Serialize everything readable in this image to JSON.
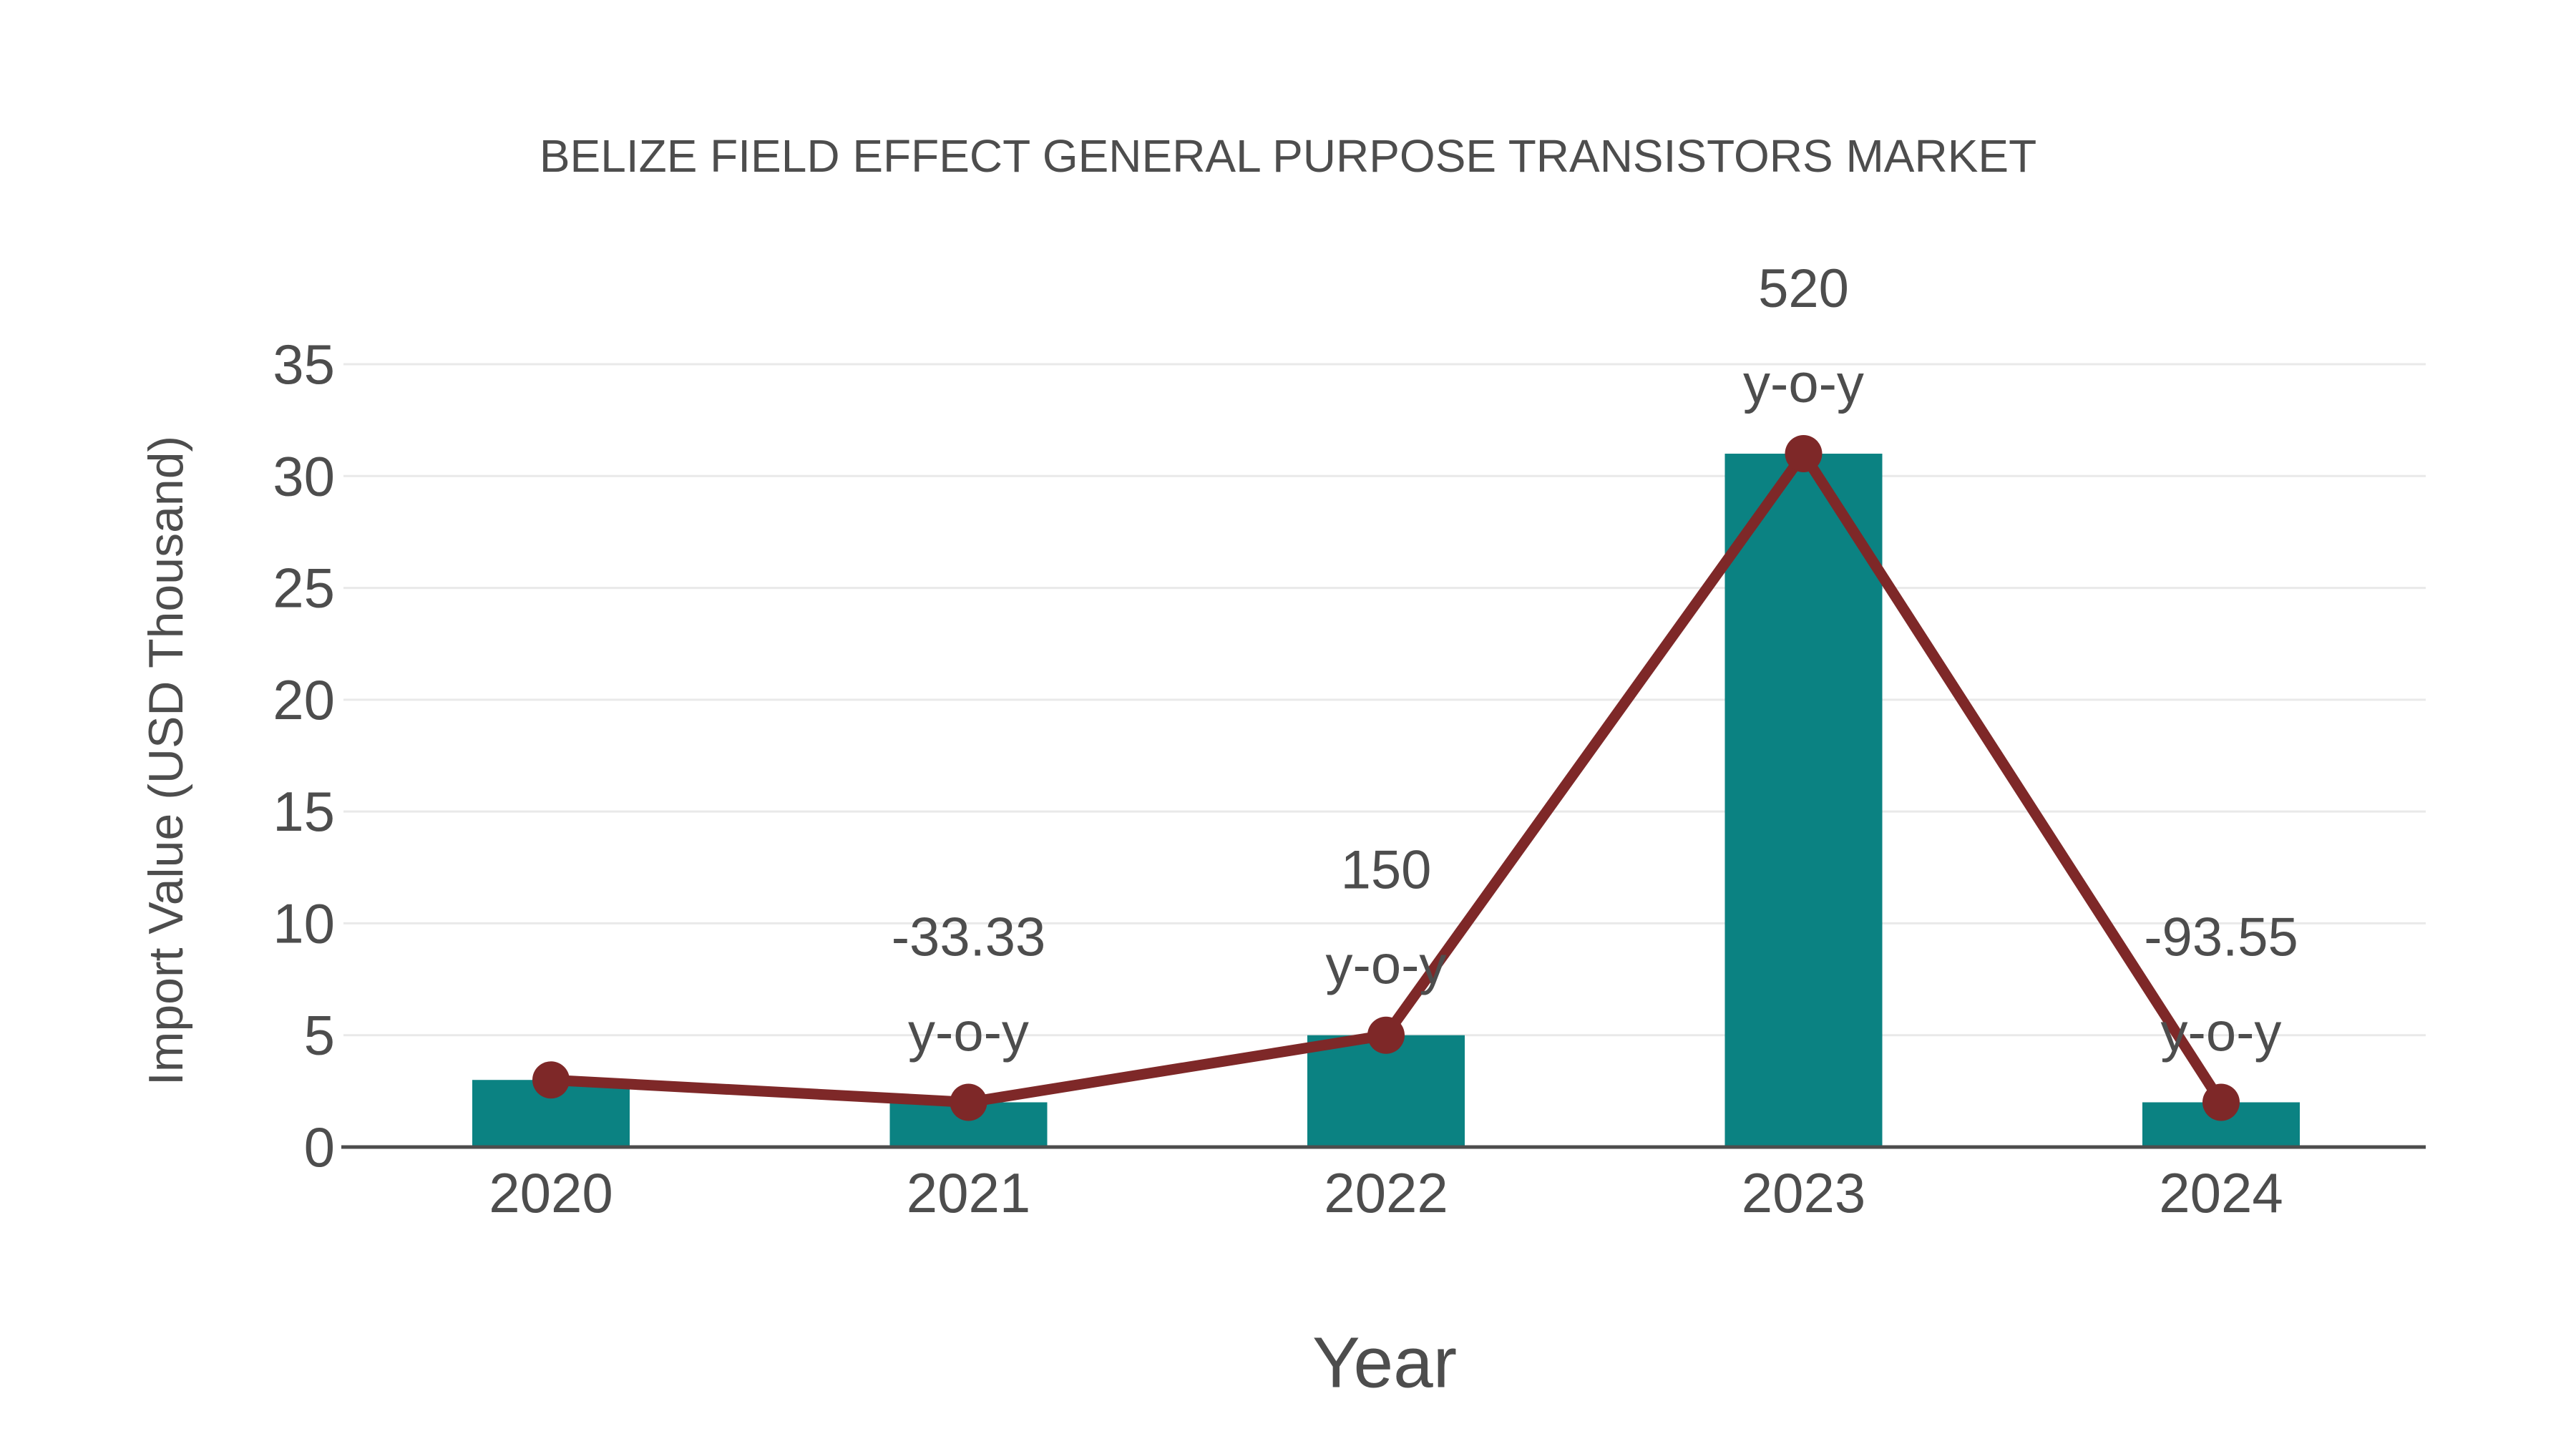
{
  "chart_data": {
    "type": "bar",
    "title": "BELIZE FIELD EFFECT GENERAL PURPOSE TRANSISTORS MARKET",
    "xlabel": "Year",
    "ylabel": "Import Value (USD Thousand)",
    "categories": [
      "2020",
      "2021",
      "2022",
      "2023",
      "2024"
    ],
    "series": [
      {
        "name": "import-value-bars",
        "type": "bar",
        "values": [
          3,
          2,
          5,
          31,
          2
        ]
      },
      {
        "name": "import-value-line",
        "type": "line",
        "values": [
          3,
          2,
          5,
          31,
          2
        ]
      }
    ],
    "yoy": {
      "suffix": "y-o-y",
      "labels": [
        "",
        "-33.33",
        "150",
        "520",
        "-93.55"
      ],
      "values": [
        null,
        -33.33,
        150,
        520,
        -93.55
      ]
    },
    "ylim": [
      0,
      35
    ],
    "yticks": [
      0,
      5,
      10,
      15,
      20,
      25,
      30,
      35
    ],
    "grid": true,
    "legend": "none",
    "colors": {
      "bar": "#0b8282",
      "line": "#7e2828",
      "marker": "#7e2828",
      "text": "#4d4d4d",
      "grid": "#e9e9e9",
      "axis": "#4d4d4d",
      "background": "#ffffff"
    }
  }
}
